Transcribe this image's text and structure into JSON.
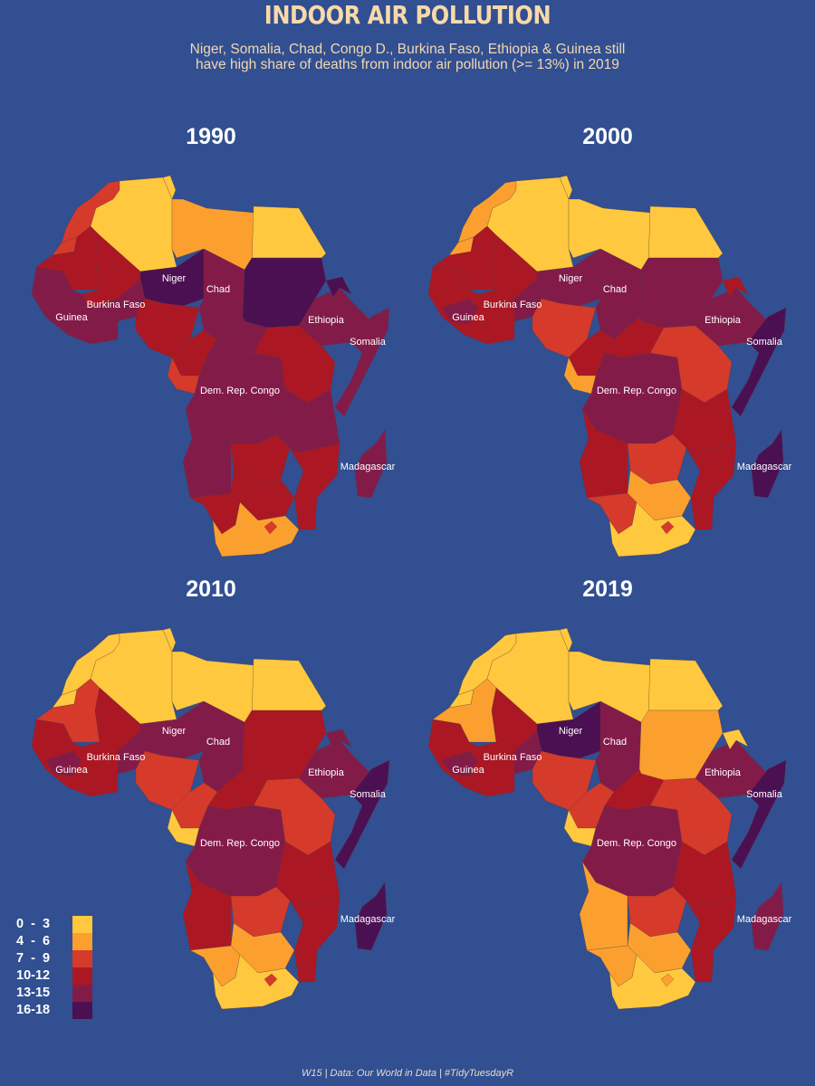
{
  "title": "INDOOR AIR POLLUTION",
  "subtitle_line1": "Niger, Somalia, Chad, Congo D., Burkina Faso, Ethiopia & Guinea still",
  "subtitle_line2": "have high share of deaths from indoor air pollution (>= 13%) in 2019",
  "caption": "W15 | Data: Our World in Data | #TidyTuesdayR",
  "legend": [
    {
      "label": "0  -  3",
      "color": "#FFC83E"
    },
    {
      "label": "4  -  6",
      "color": "#FBA02F"
    },
    {
      "label": "7  -  9",
      "color": "#D63A2A"
    },
    {
      "label": "10-12",
      "color": "#AC1724"
    },
    {
      "label": "13-15",
      "color": "#831B48"
    },
    {
      "label": "16-18",
      "color": "#4B1052"
    }
  ],
  "country_labels": [
    "Niger",
    "Chad",
    "Burkina Faso",
    "Guinea",
    "Ethiopia",
    "Somalia",
    "Dem. Rep. Congo",
    "Madagascar"
  ],
  "panels": [
    {
      "year": "1990",
      "classes": {
        "morocco": 2,
        "westernSahara": 2,
        "algeria": 0,
        "tunisia": 0,
        "libya": 1,
        "egypt": 0,
        "mauritania": 3,
        "mali": 3,
        "niger": 5,
        "chad": 4,
        "sudan": 5,
        "westAfrica": 4,
        "burkina": 4,
        "guinea": 4,
        "nigeria": 3,
        "ethiopia": 4,
        "somalia": 4,
        "hornEritrea": 5,
        "car": 4,
        "cameroon": 3,
        "gabon": 2,
        "drc": 4,
        "eastAfrica": 3,
        "angola": 4,
        "zambia": 3,
        "tanzania": 4,
        "mozambique": 3,
        "namibia": 3,
        "southernCentral": 3,
        "southAfrica": 1,
        "lesotho": 2,
        "madagascar": 4
      }
    },
    {
      "year": "2000",
      "classes": {
        "morocco": 1,
        "westernSahara": 1,
        "algeria": 0,
        "tunisia": 0,
        "libya": 0,
        "egypt": 0,
        "mauritania": 3,
        "mali": 3,
        "niger": 4,
        "chad": 4,
        "sudan": 4,
        "westAfrica": 3,
        "burkina": 4,
        "guinea": 4,
        "nigeria": 2,
        "ethiopia": 4,
        "somalia": 5,
        "hornEritrea": 3,
        "car": 3,
        "cameroon": 3,
        "gabon": 1,
        "drc": 4,
        "eastAfrica": 2,
        "angola": 3,
        "zambia": 2,
        "tanzania": 3,
        "mozambique": 3,
        "namibia": 2,
        "southernCentral": 1,
        "southAfrica": 0,
        "lesotho": 2,
        "madagascar": 5
      }
    },
    {
      "year": "2010",
      "classes": {
        "morocco": 0,
        "westernSahara": 0,
        "algeria": 0,
        "tunisia": 0,
        "libya": 0,
        "egypt": 0,
        "mauritania": 2,
        "mali": 3,
        "niger": 4,
        "chad": 4,
        "sudan": 3,
        "westAfrica": 3,
        "burkina": 4,
        "guinea": 4,
        "nigeria": 2,
        "ethiopia": 4,
        "somalia": 5,
        "hornEritrea": 4,
        "car": 3,
        "cameroon": 2,
        "gabon": 0,
        "drc": 4,
        "eastAfrica": 2,
        "angola": 3,
        "zambia": 2,
        "tanzania": 3,
        "mozambique": 3,
        "namibia": 1,
        "southernCentral": 1,
        "southAfrica": 0,
        "lesotho": 2,
        "madagascar": 5
      }
    },
    {
      "year": "2019",
      "classes": {
        "morocco": 0,
        "westernSahara": 0,
        "algeria": 0,
        "tunisia": 0,
        "libya": 0,
        "egypt": 0,
        "mauritania": 1,
        "mali": 3,
        "niger": 5,
        "chad": 4,
        "sudan": 1,
        "westAfrica": 3,
        "burkina": 4,
        "guinea": 4,
        "nigeria": 2,
        "ethiopia": 4,
        "somalia": 5,
        "hornEritrea": 0,
        "car": 3,
        "cameroon": 2,
        "gabon": 0,
        "drc": 4,
        "eastAfrica": 2,
        "angola": 1,
        "zambia": 2,
        "tanzania": 3,
        "mozambique": 3,
        "namibia": 1,
        "southernCentral": 1,
        "southAfrica": 0,
        "lesotho": 1,
        "madagascar": 4
      }
    }
  ]
}
